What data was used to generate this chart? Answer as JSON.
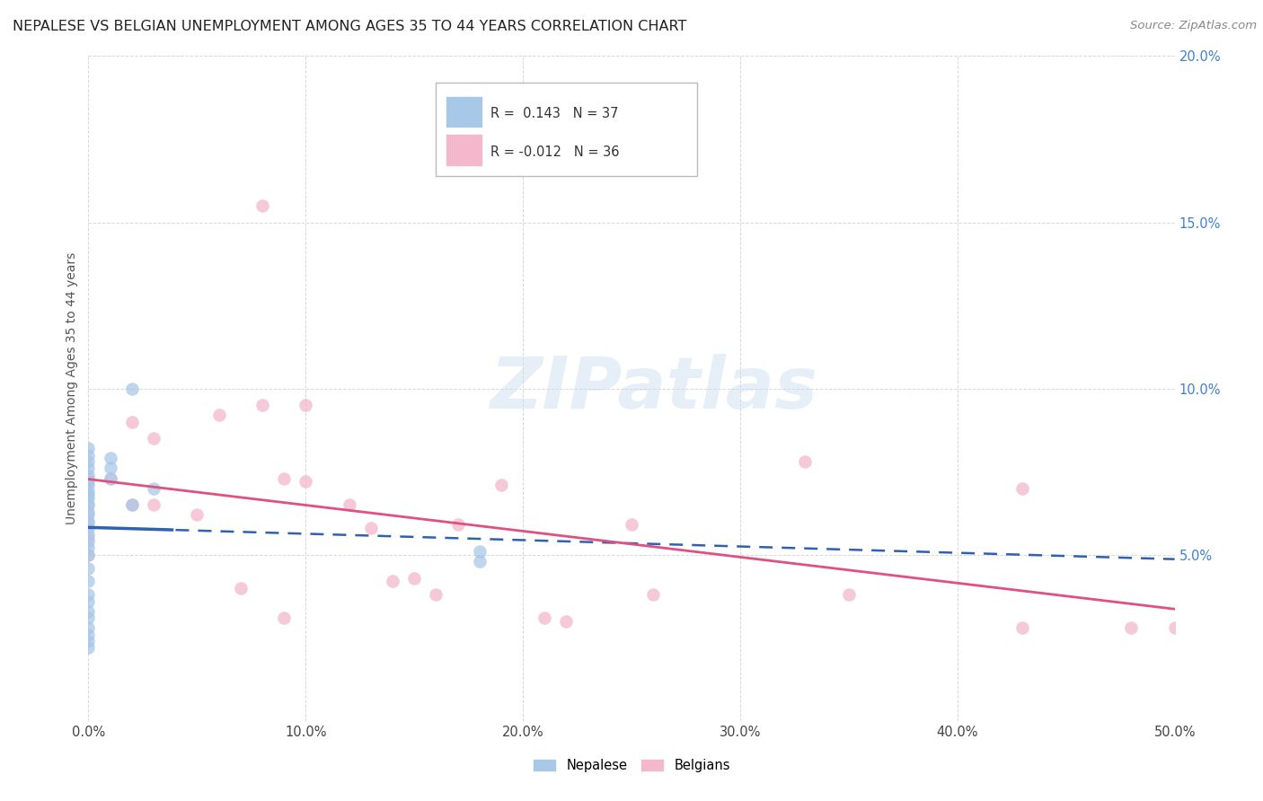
{
  "title": "NEPALESE VS BELGIAN UNEMPLOYMENT AMONG AGES 35 TO 44 YEARS CORRELATION CHART",
  "source": "Source: ZipAtlas.com",
  "ylabel": "Unemployment Among Ages 35 to 44 years",
  "xlim": [
    0,
    0.5
  ],
  "ylim": [
    0,
    0.2
  ],
  "xticks": [
    0.0,
    0.1,
    0.2,
    0.3,
    0.4,
    0.5
  ],
  "yticks": [
    0.0,
    0.05,
    0.1,
    0.15,
    0.2
  ],
  "nepalese_x": [
    0.0,
    0.0,
    0.0,
    0.0,
    0.0,
    0.0,
    0.0,
    0.0,
    0.0,
    0.0,
    0.0,
    0.0,
    0.0,
    0.0,
    0.0,
    0.0,
    0.0,
    0.0,
    0.0,
    0.0,
    0.0,
    0.0,
    0.0,
    0.0,
    0.0,
    0.0,
    0.0,
    0.0,
    0.0,
    0.01,
    0.01,
    0.01,
    0.02,
    0.02,
    0.03,
    0.18,
    0.18
  ],
  "nepalese_y": [
    0.082,
    0.08,
    0.078,
    0.076,
    0.074,
    0.072,
    0.071,
    0.069,
    0.068,
    0.067,
    0.065,
    0.063,
    0.062,
    0.06,
    0.058,
    0.056,
    0.054,
    0.052,
    0.05,
    0.046,
    0.042,
    0.038,
    0.036,
    0.033,
    0.031,
    0.028,
    0.026,
    0.024,
    0.022,
    0.079,
    0.076,
    0.073,
    0.1,
    0.065,
    0.07,
    0.051,
    0.048
  ],
  "belgians_x": [
    0.0,
    0.0,
    0.0,
    0.0,
    0.0,
    0.01,
    0.02,
    0.02,
    0.03,
    0.03,
    0.05,
    0.06,
    0.07,
    0.08,
    0.08,
    0.09,
    0.09,
    0.1,
    0.1,
    0.12,
    0.13,
    0.14,
    0.15,
    0.16,
    0.17,
    0.19,
    0.21,
    0.22,
    0.25,
    0.26,
    0.33,
    0.35,
    0.43,
    0.43,
    0.48,
    0.5
  ],
  "belgians_y": [
    0.073,
    0.065,
    0.06,
    0.055,
    0.05,
    0.073,
    0.09,
    0.065,
    0.085,
    0.065,
    0.062,
    0.092,
    0.04,
    0.155,
    0.095,
    0.073,
    0.031,
    0.095,
    0.072,
    0.065,
    0.058,
    0.042,
    0.043,
    0.038,
    0.059,
    0.071,
    0.031,
    0.03,
    0.059,
    0.038,
    0.078,
    0.038,
    0.028,
    0.07,
    0.028,
    0.028
  ],
  "blue_color": "#a8c8e8",
  "pink_color": "#f4b8cc",
  "blue_line_color": "#3060b0",
  "pink_line_color": "#e05080",
  "background_color": "#ffffff",
  "grid_color": "#d8d8d8",
  "r_nepalese": 0.143,
  "n_nepalese": 37,
  "r_belgians": -0.012,
  "n_belgians": 36,
  "title_fontsize": 11.5,
  "source_fontsize": 9.5,
  "axis_label_fontsize": 10,
  "tick_fontsize": 10.5,
  "ytick_color": "#4080d0",
  "xtick_color": "#444444"
}
